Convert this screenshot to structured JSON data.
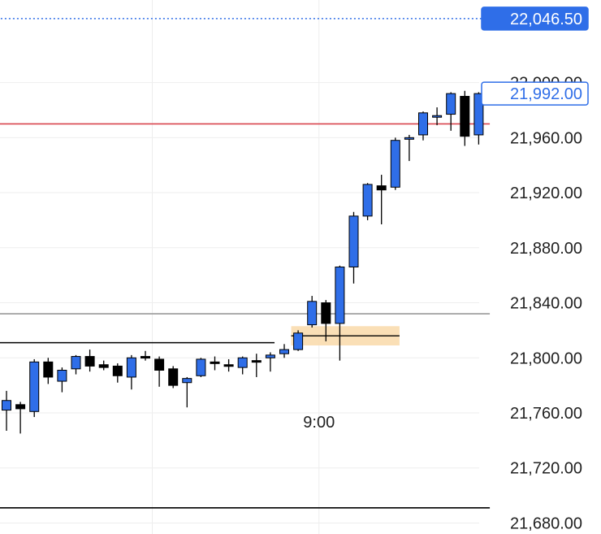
{
  "chart_data": {
    "type": "candlestick",
    "title": "",
    "xlabel": "",
    "ylabel": "",
    "x_tick_labels": [
      {
        "index": 22.5,
        "label": "9:00"
      }
    ],
    "y_ticks": [
      21680,
      21720,
      21760,
      21800,
      21840,
      21880,
      21920,
      21960,
      22000
    ],
    "y_tick_labels": [
      "21,680.00",
      "21,720.00",
      "21,760.00",
      "21,800.00",
      "21,840.00",
      "21,880.00",
      "21,920.00",
      "21,960.00",
      "22,000.00"
    ],
    "ylim": [
      21672,
      22060
    ],
    "grid": true,
    "colors": {
      "up": "#2f6ee8",
      "down": "#000000",
      "wick": "#000000",
      "tag_fill": "#2f6ee8",
      "current_line": "#d9454d",
      "level_line": "#000000",
      "mid_line": "#9a9a9a",
      "zone": "#f9dcae"
    },
    "candles": [
      {
        "o": 21762,
        "h": 21776,
        "l": 21747,
        "c": 21769
      },
      {
        "o": 21766,
        "h": 21768,
        "l": 21745,
        "c": 21763
      },
      {
        "o": 21761,
        "h": 21799,
        "l": 21757,
        "c": 21797
      },
      {
        "o": 21797,
        "h": 21800,
        "l": 21781,
        "c": 21786
      },
      {
        "o": 21783,
        "h": 21793,
        "l": 21775,
        "c": 21791
      },
      {
        "o": 21792,
        "h": 21802,
        "l": 21788,
        "c": 21801
      },
      {
        "o": 21801,
        "h": 21806,
        "l": 21790,
        "c": 21794
      },
      {
        "o": 21795,
        "h": 21798,
        "l": 21791,
        "c": 21793
      },
      {
        "o": 21794,
        "h": 21796,
        "l": 21782,
        "c": 21787
      },
      {
        "o": 21786,
        "h": 21802,
        "l": 21777,
        "c": 21800
      },
      {
        "o": 21801,
        "h": 21805,
        "l": 21798,
        "c": 21800
      },
      {
        "o": 21799,
        "h": 21801,
        "l": 21779,
        "c": 21791
      },
      {
        "o": 21792,
        "h": 21794,
        "l": 21778,
        "c": 21780
      },
      {
        "o": 21782,
        "h": 21786,
        "l": 21764,
        "c": 21785
      },
      {
        "o": 21787,
        "h": 21800,
        "l": 21786,
        "c": 21799
      },
      {
        "o": 21797,
        "h": 21801,
        "l": 21791,
        "c": 21796
      },
      {
        "o": 21795,
        "h": 21799,
        "l": 21790,
        "c": 21794
      },
      {
        "o": 21793,
        "h": 21801,
        "l": 21788,
        "c": 21800
      },
      {
        "o": 21798,
        "h": 21803,
        "l": 21786,
        "c": 21797
      },
      {
        "o": 21800,
        "h": 21804,
        "l": 21790,
        "c": 21802
      },
      {
        "o": 21803,
        "h": 21810,
        "l": 21800,
        "c": 21806
      },
      {
        "o": 21806,
        "h": 21820,
        "l": 21805,
        "c": 21818
      },
      {
        "o": 21824,
        "h": 21845,
        "l": 21822,
        "c": 21841
      },
      {
        "o": 21840,
        "h": 21842,
        "l": 21812,
        "c": 21825
      },
      {
        "o": 21825,
        "h": 21867,
        "l": 21798,
        "c": 21866
      },
      {
        "o": 21866,
        "h": 21906,
        "l": 21854,
        "c": 21903
      },
      {
        "o": 21903,
        "h": 21927,
        "l": 21900,
        "c": 21926
      },
      {
        "o": 21925,
        "h": 21933,
        "l": 21897,
        "c": 21922
      },
      {
        "o": 21924,
        "h": 21960,
        "l": 21922,
        "c": 21958
      },
      {
        "o": 21959,
        "h": 21962,
        "l": 21943,
        "c": 21960
      },
      {
        "o": 21962,
        "h": 21979,
        "l": 21958,
        "c": 21978
      },
      {
        "o": 21975,
        "h": 21982,
        "l": 21969,
        "c": 21976
      },
      {
        "o": 21977,
        "h": 21993,
        "l": 21965,
        "c": 21992
      },
      {
        "o": 21990,
        "h": 21994,
        "l": 21954,
        "c": 21961
      },
      {
        "o": 21962,
        "h": 21993,
        "l": 21955,
        "c": 21992
      }
    ],
    "horizontal_lines": [
      {
        "name": "price-line-dotted",
        "price": 22046.5,
        "style": "dotted",
        "color": "#2f6ee8",
        "from_index": -1,
        "to_index": 34.8
      },
      {
        "name": "current-price-line",
        "price": 21970,
        "style": "solid",
        "color": "#d9454d",
        "from_index": -1,
        "to_index": 34.8
      },
      {
        "name": "gray-level-line",
        "price": 21832,
        "style": "solid",
        "color": "#9a9a9a",
        "from_index": -1,
        "to_index": 34.8
      },
      {
        "name": "upper-level-line",
        "price": 21811,
        "style": "solid",
        "color": "#000000",
        "from_index": -1,
        "to_index": 19.3
      },
      {
        "name": "lower-level-line",
        "price": 21691,
        "style": "solid",
        "color": "#000000",
        "from_index": -1,
        "to_index": 34.8
      }
    ],
    "zone": {
      "price_low": 21809,
      "price_high": 21823,
      "mid_price": 21816,
      "from_index": 20.5,
      "to_index": 28.3
    },
    "price_tags": [
      {
        "value": 22046.5,
        "label": "22,046.50",
        "style": "filled"
      },
      {
        "value": 21992,
        "label": "21,992.00",
        "style": "outline"
      }
    ]
  }
}
